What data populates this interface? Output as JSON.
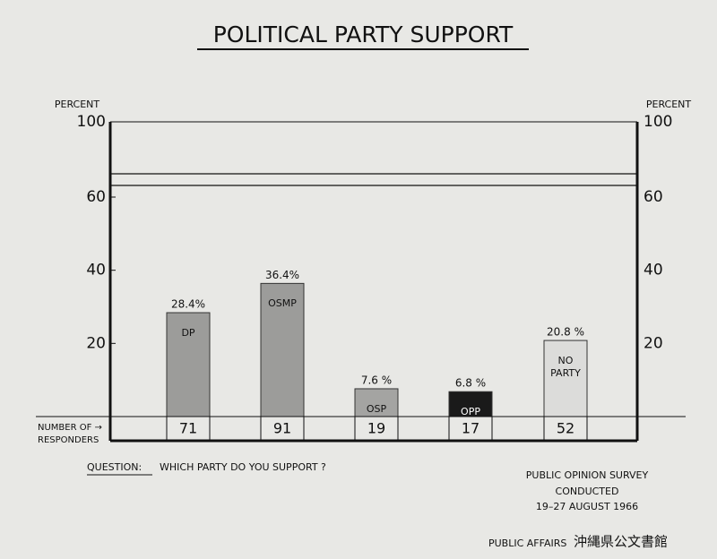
{
  "chart_data": {
    "type": "bar",
    "title": "POLITICAL PARTY SUPPORT",
    "y_label": "PERCENT",
    "categories": [
      "DP",
      "OSMP",
      "OSP",
      "OPP",
      "NO PARTY"
    ],
    "values": [
      28.4,
      36.4,
      7.6,
      6.8,
      20.8
    ],
    "value_labels": [
      "28.4%",
      "36.4%",
      "7.6 %",
      "6.8 %",
      "20.8 %"
    ],
    "colors": [
      "#9c9c9a",
      "#9c9c9a",
      "#a4a4a2",
      "#1a1a1a",
      "#dcdcda"
    ],
    "ylim": [
      0,
      100
    ],
    "yticks": [
      20,
      40,
      60,
      100
    ],
    "axis_break": true,
    "responders_label": [
      "NUMBER OF →",
      "RESPONDERS"
    ],
    "responders": [
      71,
      91,
      19,
      17,
      52
    ],
    "question_label": "QUESTION:",
    "question": "WHICH PARTY DO YOU SUPPORT ?",
    "source": [
      "PUBLIC OPINION SURVEY",
      "CONDUCTED",
      "19–27 AUGUST 1966"
    ],
    "footer": "PUBLIC AFFAIRS",
    "watermark": "沖縄県公文書館"
  }
}
